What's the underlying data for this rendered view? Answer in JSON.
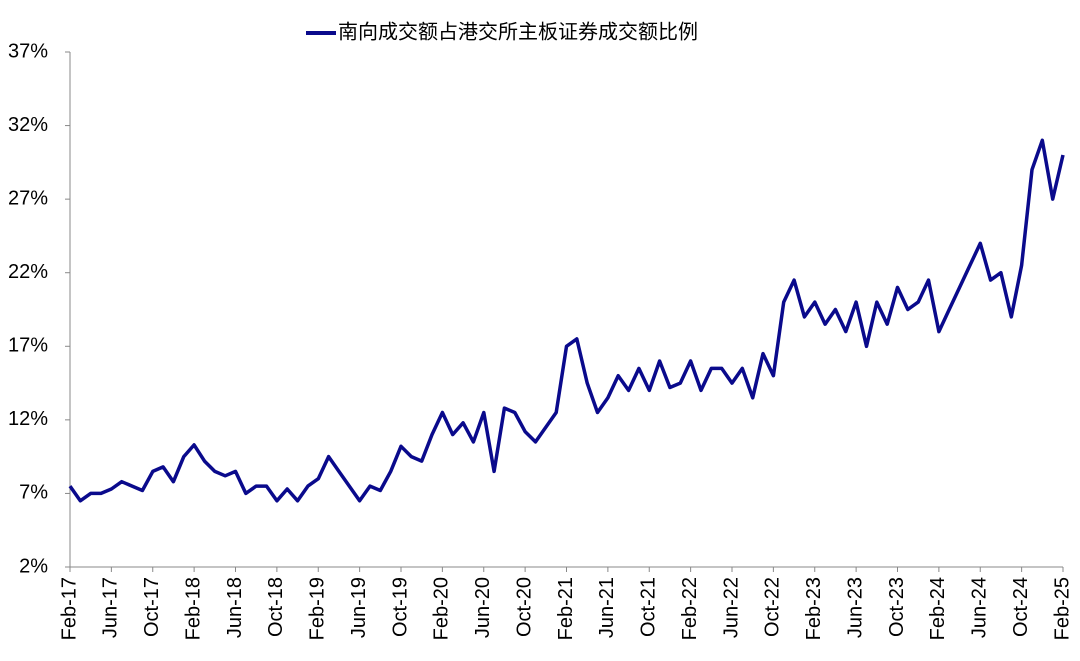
{
  "chart_data": {
    "type": "line",
    "categories": [
      "Feb-17",
      null,
      null,
      null,
      "Jun-17",
      null,
      null,
      null,
      "Oct-17",
      null,
      null,
      null,
      "Feb-18",
      null,
      null,
      null,
      "Jun-18",
      null,
      null,
      null,
      "Oct-18",
      null,
      null,
      null,
      "Feb-19",
      null,
      null,
      null,
      "Jun-19",
      null,
      null,
      null,
      "Oct-19",
      null,
      null,
      null,
      "Feb-20",
      null,
      null,
      null,
      "Jun-20",
      null,
      null,
      null,
      "Oct-20",
      null,
      null,
      null,
      "Feb-21",
      null,
      null,
      null,
      "Jun-21",
      null,
      null,
      null,
      "Oct-21",
      null,
      null,
      null,
      "Feb-22",
      null,
      null,
      null,
      "Jun-22",
      null,
      null,
      null,
      "Oct-22",
      null,
      null,
      null,
      "Feb-23",
      null,
      null,
      null,
      "Jun-23",
      null,
      null,
      null,
      "Oct-23",
      null,
      null,
      null,
      "Feb-24",
      null,
      null,
      null,
      "Jun-24",
      null,
      null,
      null,
      "Oct-24",
      null,
      null,
      null,
      "Feb-25"
    ],
    "series": [
      {
        "name": "南向成交额占港交所主板证券成交额比例",
        "color": "#0a0a8c",
        "values": [
          7.5,
          6.5,
          7,
          7,
          7.3,
          7.8,
          7.5,
          7.2,
          8.5,
          8.8,
          7.8,
          9.5,
          10.3,
          9.2,
          8.5,
          8.2,
          8.5,
          7,
          7.5,
          7.5,
          6.5,
          7.3,
          6.5,
          7.5,
          8,
          9.5,
          8.5,
          7.5,
          6.5,
          7.5,
          7.2,
          8.5,
          10.2,
          9.5,
          9.2,
          11,
          12.5,
          11,
          11.8,
          10.5,
          12.5,
          8.5,
          12.8,
          12.5,
          11.2,
          10.5,
          11.5,
          12.5,
          17,
          17.5,
          14.5,
          12.5,
          13.5,
          15,
          14,
          15.5,
          14,
          16,
          14.2,
          14.5,
          16,
          14,
          15.5,
          15.5,
          14.5,
          15.5,
          13.5,
          16.5,
          15,
          20,
          21.5,
          19,
          20,
          18.5,
          19.5,
          18,
          20,
          17,
          20,
          18.5,
          21,
          19.5,
          20,
          21.5,
          18,
          19.5,
          21,
          22.5,
          24,
          21.5,
          22,
          19,
          22.5,
          29,
          31,
          27,
          30
        ]
      }
    ],
    "ylim": [
      2,
      37
    ],
    "yticks": [
      {
        "value": 2,
        "label": "2%"
      },
      {
        "value": 7,
        "label": "7%"
      },
      {
        "value": 12,
        "label": "12%"
      },
      {
        "value": 17,
        "label": "17%"
      },
      {
        "value": 22,
        "label": "22%"
      },
      {
        "value": 27,
        "label": "27%"
      },
      {
        "value": 32,
        "label": "32%"
      },
      {
        "value": 37,
        "label": "37%"
      }
    ],
    "grid": false
  }
}
